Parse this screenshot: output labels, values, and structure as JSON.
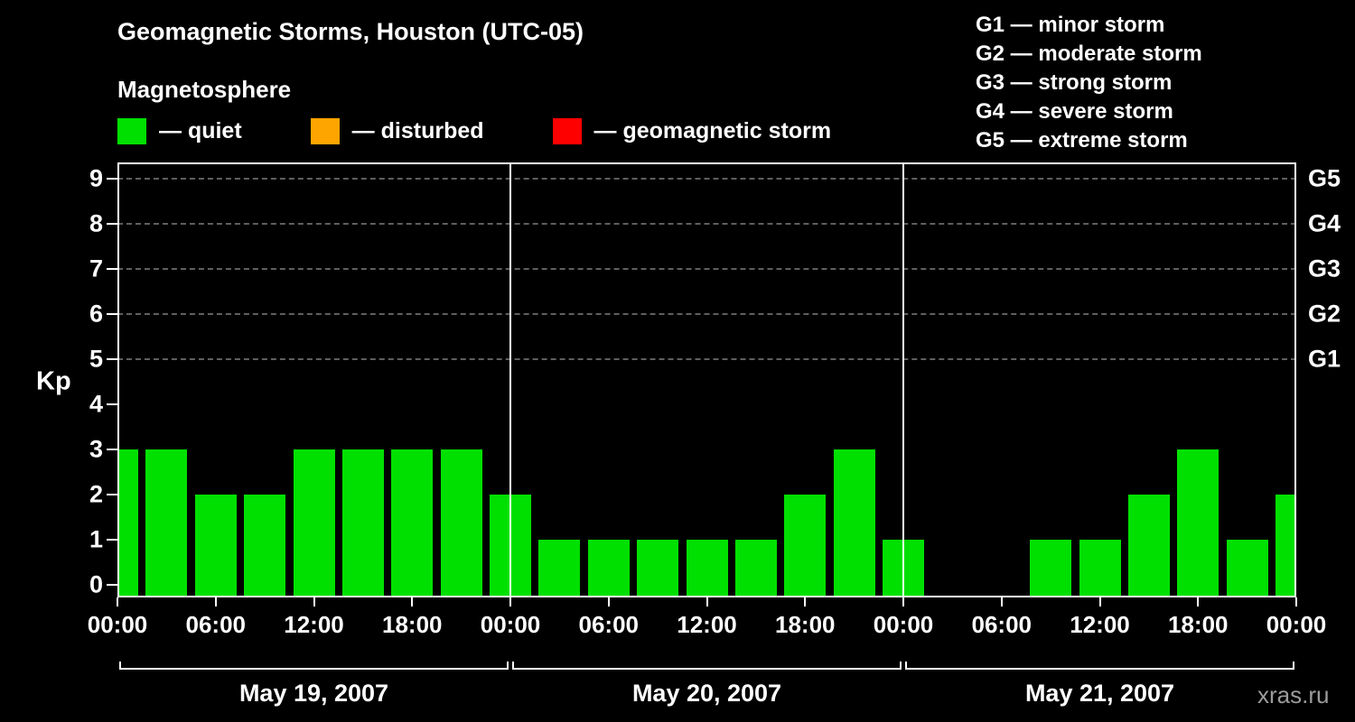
{
  "title": "Geomagnetic Storms, Houston (UTC-05)",
  "subtitle": "Magnetosphere",
  "legend": {
    "items": [
      {
        "name": "quiet",
        "color": "#00e000",
        "label": "— quiet"
      },
      {
        "name": "disturbed",
        "color": "#ffa500",
        "label": "— disturbed"
      },
      {
        "name": "storm",
        "color": "#ff0000",
        "label": "— geomagnetic storm"
      }
    ]
  },
  "g_legend": [
    "G1 — minor storm",
    "G2 — moderate storm",
    "G3 — strong storm",
    "G4 — severe storm",
    "G5 — extreme storm"
  ],
  "watermark": "xras.ru",
  "chart_data": {
    "type": "bar",
    "title": "Geomagnetic Storms, Houston (UTC-05)",
    "subtitle": "Magnetosphere",
    "ylabel": "Kp",
    "ylim": [
      0,
      9.5
    ],
    "y_ticks": [
      0,
      1,
      2,
      3,
      4,
      5,
      6,
      7,
      8,
      9
    ],
    "grid_levels_kp": [
      5,
      6,
      7,
      8,
      9
    ],
    "right_axis_labels": [
      {
        "label": "G5",
        "kp": 9
      },
      {
        "label": "G4",
        "kp": 8
      },
      {
        "label": "G3",
        "kp": 7
      },
      {
        "label": "G2",
        "kp": 6
      },
      {
        "label": "G1",
        "kp": 5
      }
    ],
    "x_hours_span": 72,
    "x_tick_hours": [
      0,
      6,
      12,
      18,
      24,
      30,
      36,
      42,
      48,
      54,
      60,
      66,
      72
    ],
    "x_tick_labels": [
      "00:00",
      "06:00",
      "12:00",
      "18:00",
      "00:00",
      "06:00",
      "12:00",
      "18:00",
      "00:00",
      "06:00",
      "12:00",
      "18:00",
      "00:00"
    ],
    "day_boundaries_hours": [
      24,
      48
    ],
    "days": [
      {
        "label": "May 19, 2007",
        "start_hour": 0,
        "end_hour": 24
      },
      {
        "label": "May 20, 2007",
        "start_hour": 24,
        "end_hour": 48
      },
      {
        "label": "May 21, 2007",
        "start_hour": 48,
        "end_hour": 72
      }
    ],
    "bar_color": "#00e000",
    "bars": [
      {
        "hour": 0,
        "kp": 3
      },
      {
        "hour": 3,
        "kp": 3
      },
      {
        "hour": 6,
        "kp": 2
      },
      {
        "hour": 9,
        "kp": 2
      },
      {
        "hour": 12,
        "kp": 3
      },
      {
        "hour": 15,
        "kp": 3
      },
      {
        "hour": 18,
        "kp": 3
      },
      {
        "hour": 21,
        "kp": 3
      },
      {
        "hour": 24,
        "kp": 2
      },
      {
        "hour": 27,
        "kp": 1
      },
      {
        "hour": 30,
        "kp": 1
      },
      {
        "hour": 33,
        "kp": 1
      },
      {
        "hour": 36,
        "kp": 1
      },
      {
        "hour": 39,
        "kp": 1
      },
      {
        "hour": 42,
        "kp": 2
      },
      {
        "hour": 45,
        "kp": 3
      },
      {
        "hour": 48,
        "kp": 1
      },
      {
        "hour": 57,
        "kp": 1
      },
      {
        "hour": 60,
        "kp": 1
      },
      {
        "hour": 63,
        "kp": 2
      },
      {
        "hour": 66,
        "kp": 3
      },
      {
        "hour": 69,
        "kp": 1
      },
      {
        "hour": 72,
        "kp": 2
      }
    ]
  }
}
